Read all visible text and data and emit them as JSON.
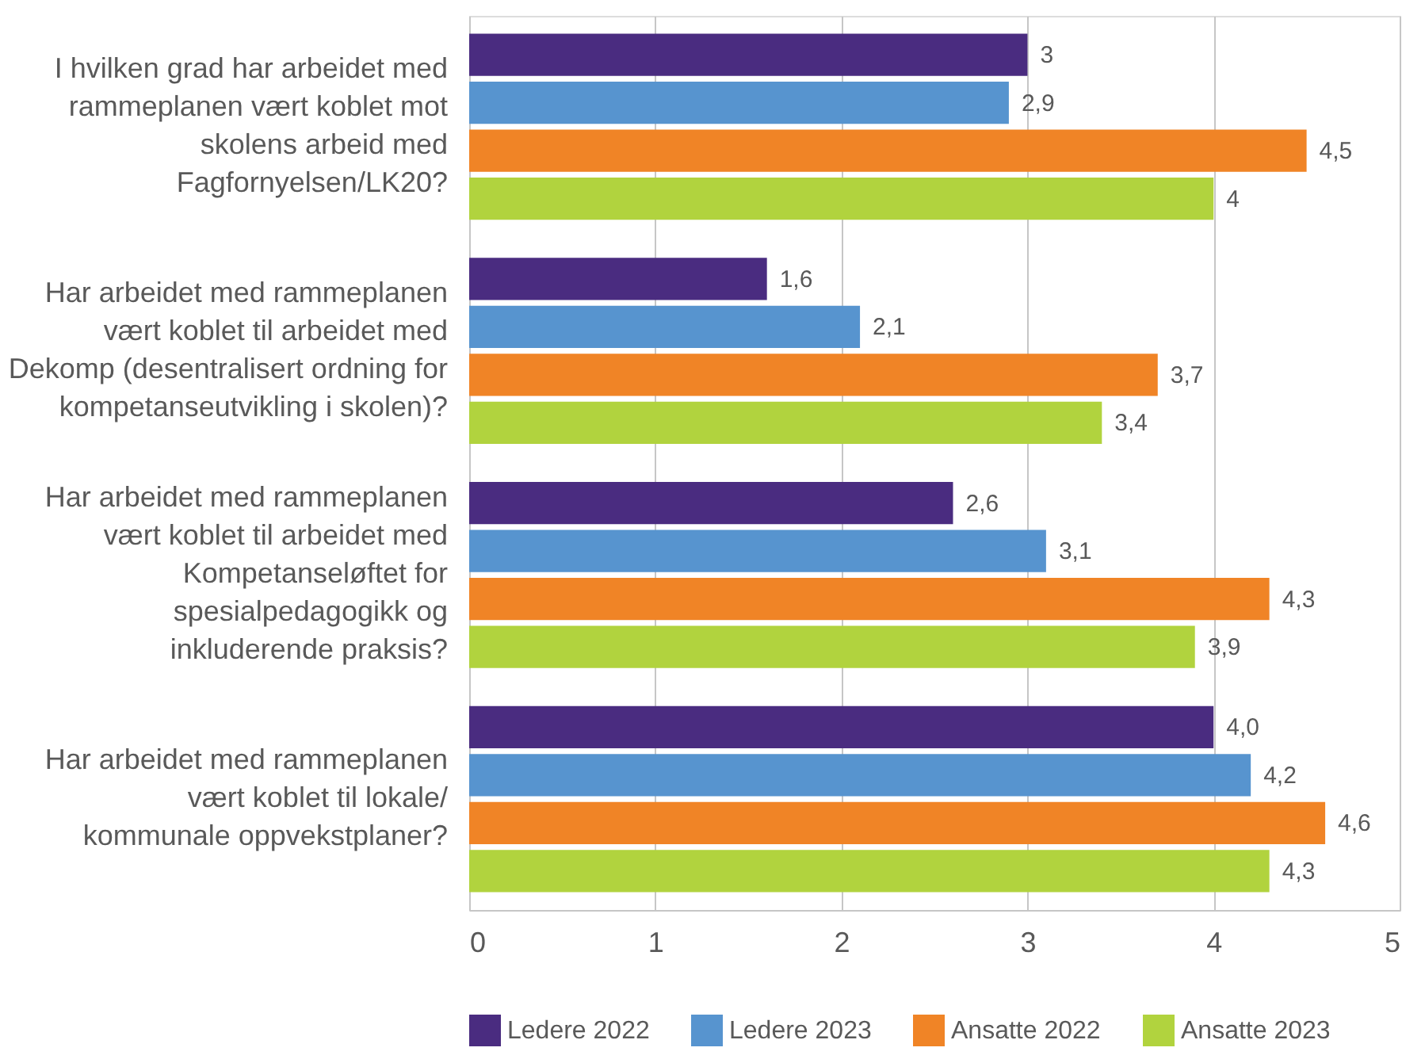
{
  "chart_data": {
    "type": "bar",
    "orientation": "horizontal",
    "categories": [
      "I hvilken grad har arbeidet med\nrammeplanen vært koblet mot\nskolens arbeid med\nFagfornyelsen/LK20?",
      "Har arbeidet med rammeplanen\nvært koblet til arbeidet med\nDekomp (desentralisert ordning for\nkompetanseutvikling i skolen)?",
      "Har arbeidet med rammeplanen\nvært koblet til arbeidet med\nKompetanseløftet for\nspesialpedagogikk og\ninkluderende praksis?",
      "Har arbeidet med rammeplanen\nvært koblet til lokale/\nkommunale oppvekstplaner?"
    ],
    "series": [
      {
        "name": "Ledere 2022",
        "color": "#4a2c80",
        "values": [
          3,
          1.6,
          2.6,
          4.0
        ],
        "value_labels": [
          "3",
          "1,6",
          "2,6",
          "4,0"
        ]
      },
      {
        "name": "Ledere 2023",
        "color": "#5794cf",
        "values": [
          2.9,
          2.1,
          3.1,
          4.2
        ],
        "value_labels": [
          "2,9",
          "2,1",
          "3,1",
          "4,2"
        ]
      },
      {
        "name": "Ansatte 2022",
        "color": "#f08426",
        "values": [
          4.5,
          3.7,
          4.3,
          4.6
        ],
        "value_labels": [
          "4,5",
          "3,7",
          "4,3",
          "4,6"
        ]
      },
      {
        "name": "Ansatte 2023",
        "color": "#b1d33e",
        "values": [
          4,
          3.4,
          3.9,
          4.3
        ],
        "value_labels": [
          "4",
          "3,4",
          "3,9",
          "4,3"
        ]
      }
    ],
    "xlim": [
      0,
      5
    ],
    "xticks": [
      0,
      1,
      2,
      3,
      4,
      5
    ],
    "grid": "x",
    "legend": "bottom"
  }
}
